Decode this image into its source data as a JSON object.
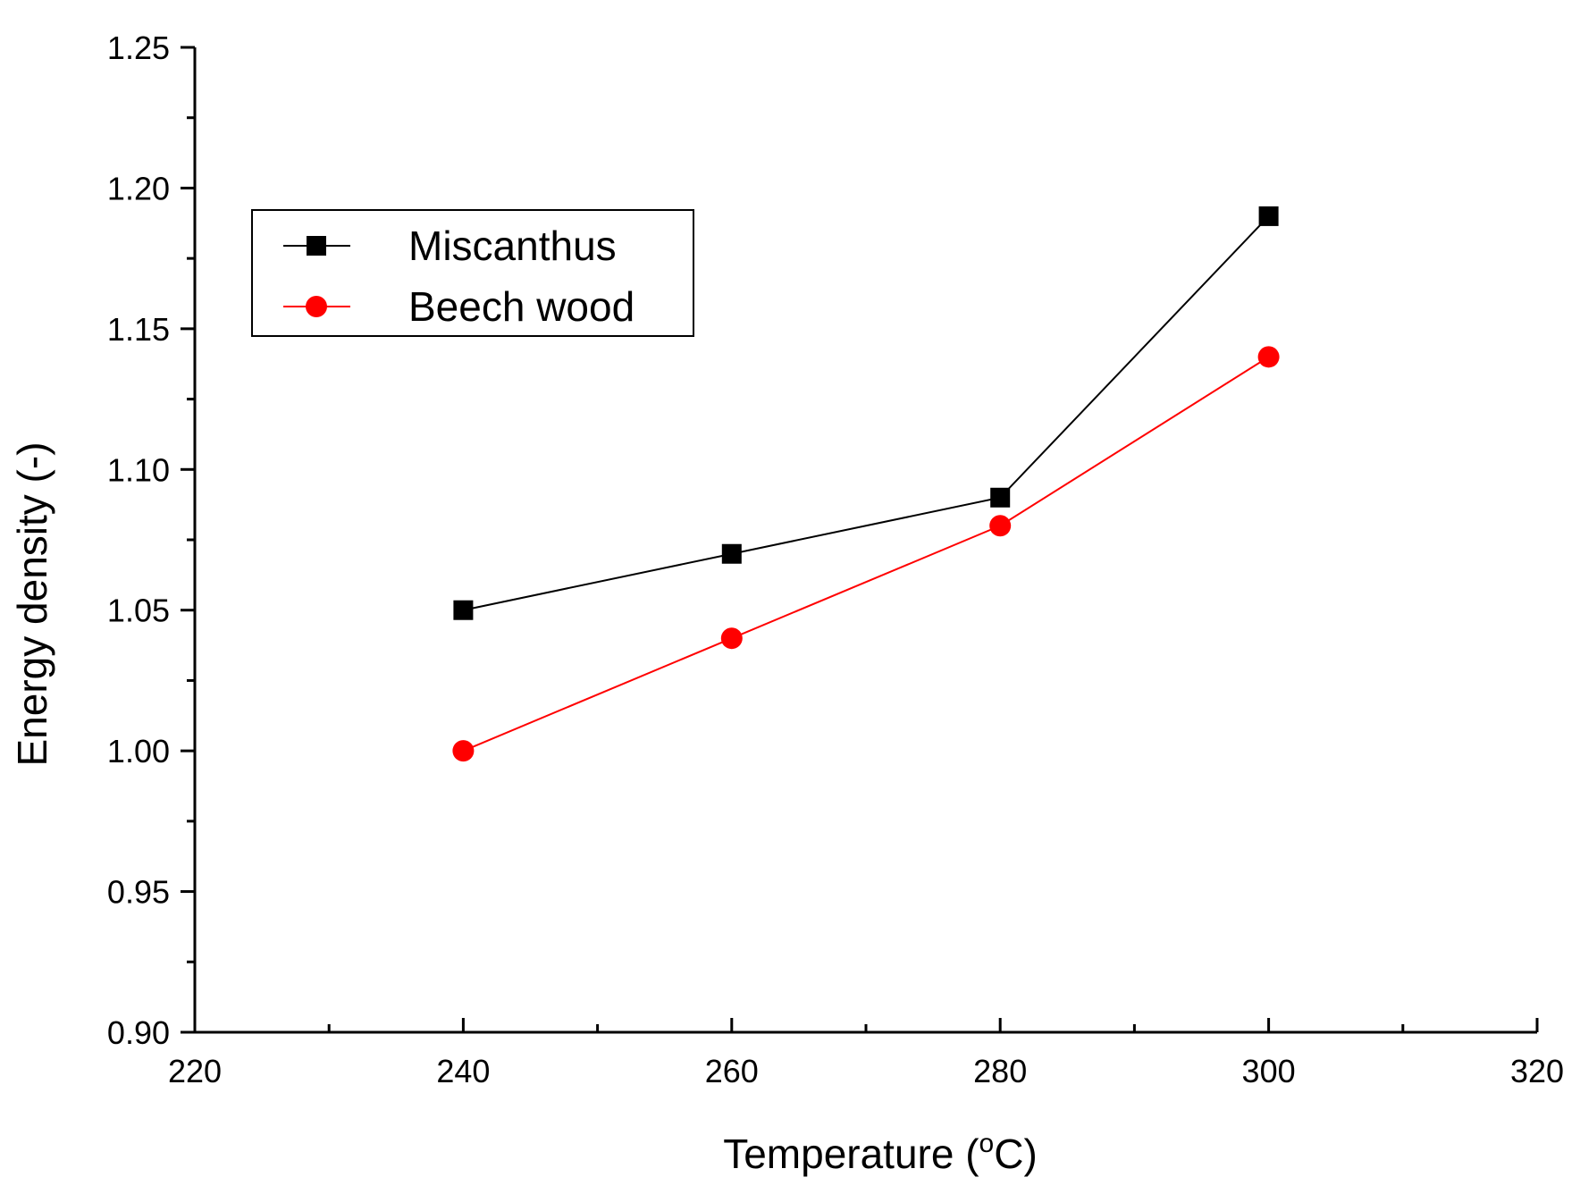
{
  "chart_data": {
    "type": "line",
    "title": "",
    "xlabel": "Temperature (",
    "xlabel_superscript": "o",
    "xlabel_suffix": "C)",
    "ylabel": "Energy density (-)",
    "xlim": [
      220,
      320
    ],
    "ylim": [
      0.9,
      1.25
    ],
    "x_ticks": [
      220,
      240,
      260,
      280,
      300,
      320
    ],
    "y_ticks": [
      "0.90",
      "0.95",
      "1.00",
      "1.05",
      "1.10",
      "1.15",
      "1.20",
      "1.25"
    ],
    "grid": false,
    "legend_position": "upper-left",
    "series": [
      {
        "name": "Miscanthus",
        "marker": "square",
        "color": "#000000",
        "x": [
          240,
          260,
          280,
          300
        ],
        "y": [
          1.05,
          1.07,
          1.09,
          1.19
        ]
      },
      {
        "name": "Beech wood",
        "marker": "circle",
        "color": "#ff0000",
        "x": [
          240,
          260,
          280,
          300
        ],
        "y": [
          1.0,
          1.04,
          1.08,
          1.14
        ]
      }
    ]
  }
}
